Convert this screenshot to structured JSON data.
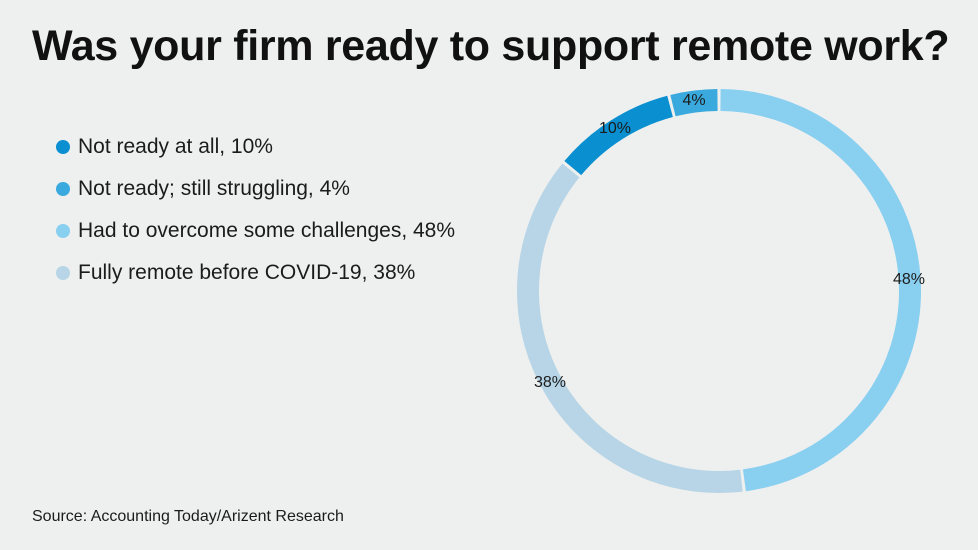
{
  "title": "Was your firm ready to support remote work?",
  "source": "Source: Accounting Today/Arizent Research",
  "chart_data": {
    "type": "pie",
    "style": "donut",
    "title": "Was your firm ready to support remote work?",
    "legend_position": "left",
    "slices": [
      {
        "label": "Not ready at all",
        "legend_text": "Not ready at all, 10%",
        "value": 10,
        "data_label": "10%",
        "color": "#0a8fd0"
      },
      {
        "label": "Not ready; still struggling",
        "legend_text": "Not ready; still struggling, 4%",
        "value": 4,
        "data_label": "4%",
        "color": "#3aa9dd"
      },
      {
        "label": "Had to overcome some challenges",
        "legend_text": "Had to overcome some challenges, 48%",
        "value": 48,
        "data_label": "48%",
        "color": "#89cff0"
      },
      {
        "label": "Fully remote before COVID-19",
        "legend_text": "Fully remote before COVID-19, 38%",
        "value": 38,
        "data_label": "38%",
        "color": "#b7d5e6"
      }
    ]
  }
}
